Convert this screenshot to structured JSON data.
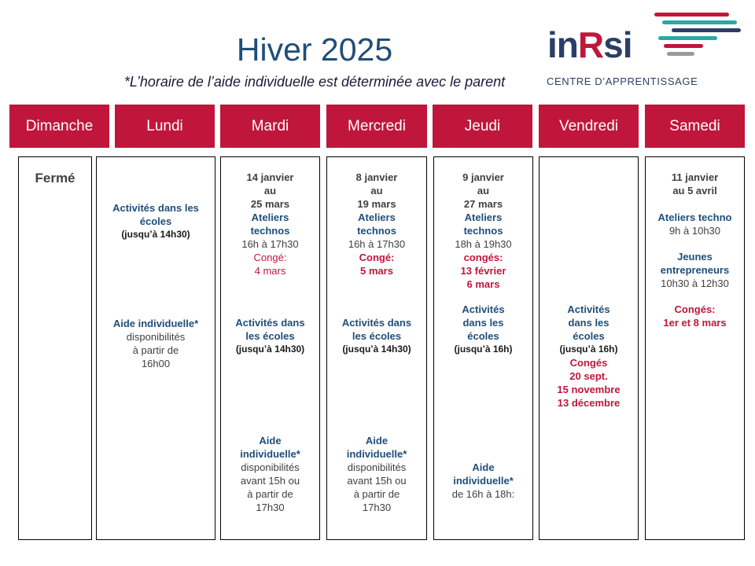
{
  "title": "Hiver 2025",
  "subtitle": "*L’horaire de l’aide individuelle est déterminée avec le parent",
  "logo": {
    "text_main": "in",
    "text_r": "R",
    "text_end": "si",
    "tagline": "CENTRE D’APPRENTISSAGE"
  },
  "days": [
    "Dimanche",
    "Lundi",
    "Mardi",
    "Mercredi",
    "Jeudi",
    "Vendredi",
    "Samedi"
  ],
  "dimanche": {
    "status": "Fermé"
  },
  "lundi": {
    "act_title": "Activités dans les écoles",
    "act_time": "(jusqu’à 14h30)",
    "aide_title": "Aide individuelle*",
    "aide_l1": "disponibilités",
    "aide_l2": "à partir de",
    "aide_l3": "16h00"
  },
  "mardi": {
    "date_l1": "14 janvier",
    "date_l2": "au",
    "date_l3": "25 mars",
    "atel_l1": "Ateliers",
    "atel_l2": "technos",
    "atel_time": "16h à 17h30",
    "conge_label": "Congé:",
    "conge_date": "4 mars",
    "act_l1": "Activités dans",
    "act_l2": "les écoles",
    "act_time": "(jusqu’à 14h30)",
    "aide_l1": "Aide",
    "aide_l2": "individuelle*",
    "disp_l1": "disponibilités",
    "disp_l2": "avant 15h ou",
    "disp_l3": "à partir de",
    "disp_l4": "17h30"
  },
  "mercredi": {
    "date_l1": "8 janvier",
    "date_l2": "au",
    "date_l3": "19 mars",
    "atel_l1": "Ateliers",
    "atel_l2": "technos",
    "atel_time": "16h à 17h30",
    "conge_label": "Congé:",
    "conge_date": "5 mars",
    "act_l1": "Activités dans",
    "act_l2": "les écoles",
    "act_time": "(jusqu’à 14h30)",
    "aide_l1": "Aide",
    "aide_l2": "individuelle*",
    "disp_l1": "disponibilités",
    "disp_l2": "avant 15h ou",
    "disp_l3": "à partir de",
    "disp_l4": "17h30"
  },
  "jeudi": {
    "date_l1": "9 janvier",
    "date_l2": "au",
    "date_l3": "27 mars",
    "atel_l1": "Ateliers",
    "atel_l2": "technos",
    "atel_time": "18h à 19h30",
    "conge_l1": "congés:",
    "conge_l2": "13 février",
    "conge_l3": "6 mars",
    "act_l1": "Activités",
    "act_l2": "dans les",
    "act_l3": "écoles",
    "act_time": "(jusqu’à 16h)",
    "aide_l1": "Aide",
    "aide_l2": "individuelle*",
    "aide_time": "de 16h à 18h:"
  },
  "vendredi": {
    "act_l1": "Activités",
    "act_l2": "dans les",
    "act_l3": "écoles",
    "act_time": "(jusqu’à 16h)",
    "conge_l1": "Congés",
    "conge_l2": "20 sept.",
    "conge_l3": "15 novembre",
    "conge_l4": "13 décembre"
  },
  "samedi": {
    "date_l1": "11 janvier",
    "date_l2": "au 5 avril",
    "atel_title": "Ateliers techno",
    "atel_time": "9h à 10h30",
    "jeunes_l1": "Jeunes",
    "jeunes_l2": "entrepreneurs",
    "jeunes_time": "10h30 à 12h30",
    "conge_l1": "Congés:",
    "conge_l2": "1er et 8 mars"
  },
  "colors": {
    "accent": "#c0163c",
    "navy": "#1f4e79",
    "text": "#404040"
  }
}
